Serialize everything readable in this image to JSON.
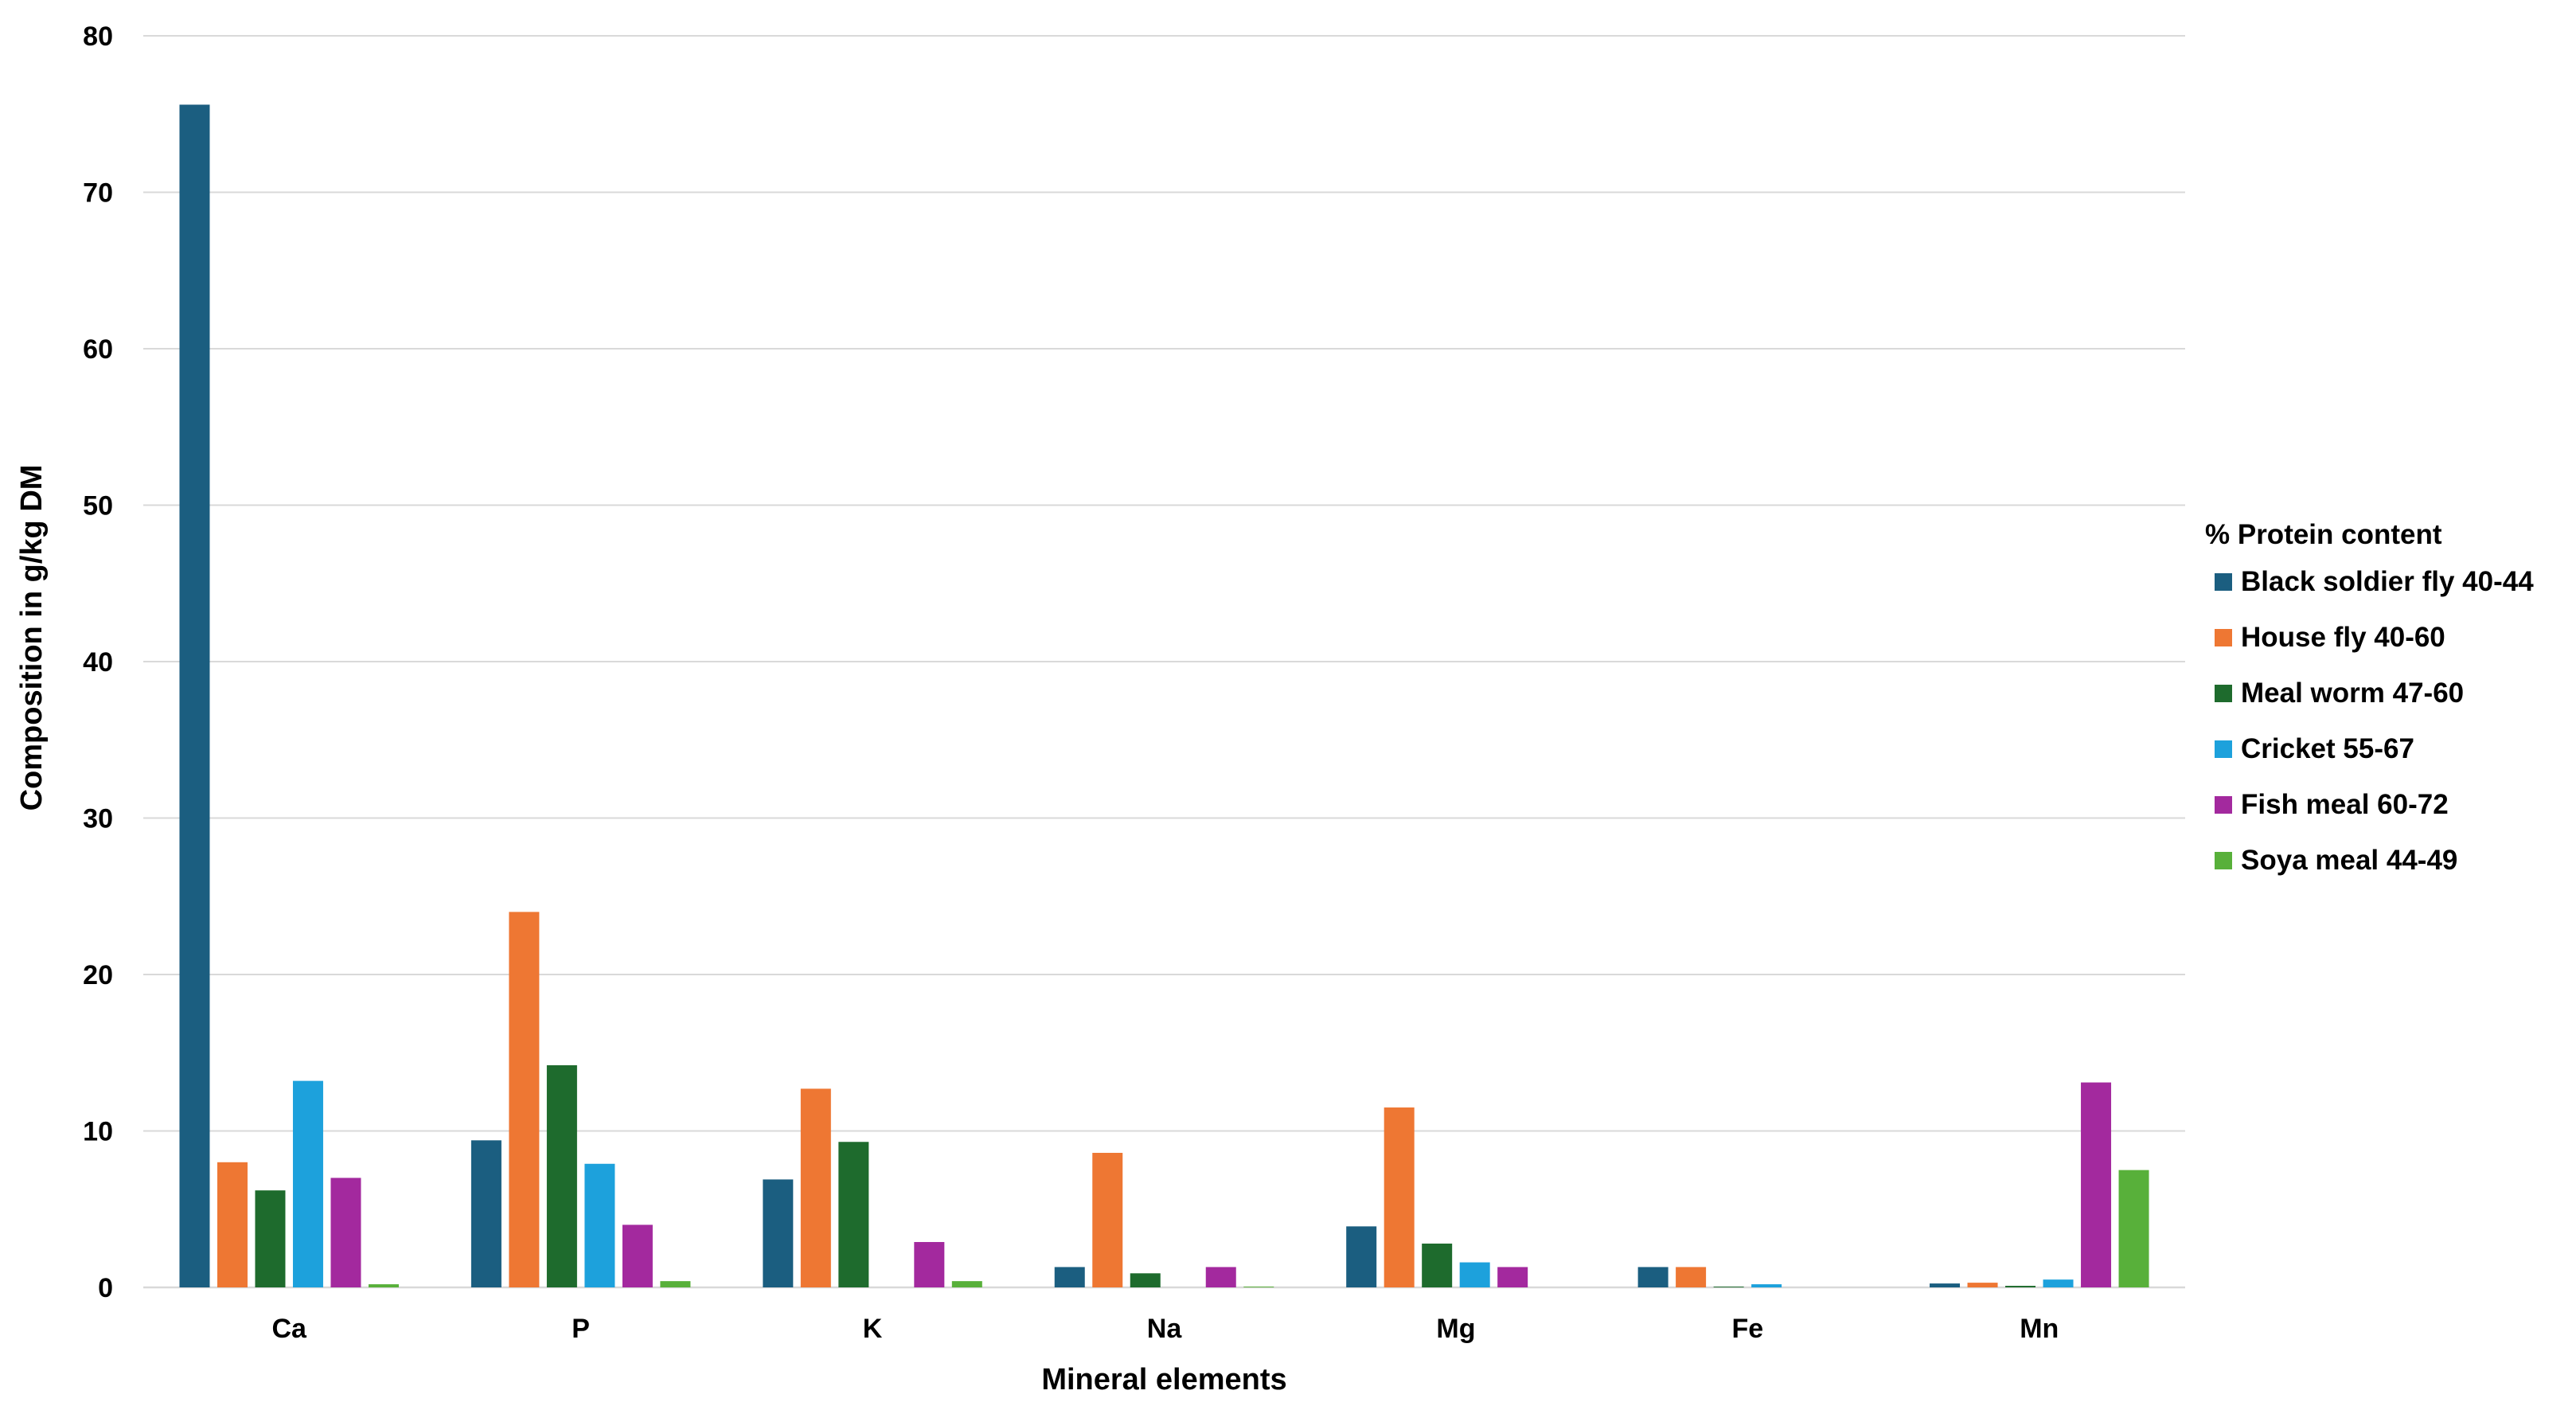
{
  "chart_data": {
    "type": "bar",
    "title": "",
    "xlabel": "Mineral elements",
    "ylabel": "Composition in g/kg DM",
    "categories": [
      "Ca",
      "P",
      "K",
      "Na",
      "Mg",
      "Fe",
      "Mn"
    ],
    "ylim": [
      0,
      80
    ],
    "yticks": [
      0,
      10,
      20,
      30,
      40,
      50,
      60,
      70,
      80
    ],
    "grid": true,
    "legend": {
      "title": "% Protein content",
      "position": "right"
    },
    "series": [
      {
        "name": "Black soldier fly 40-44",
        "color": "#1b5e80",
        "values": [
          75.6,
          9.4,
          6.9,
          1.3,
          3.9,
          1.3,
          0.25
        ]
      },
      {
        "name": "House fly 40-60",
        "color": "#ee7733",
        "values": [
          8.0,
          24.0,
          12.7,
          8.6,
          11.5,
          1.3,
          0.3
        ]
      },
      {
        "name": "Meal worm 47-60",
        "color": "#1e6b2d",
        "values": [
          6.2,
          14.2,
          9.3,
          0.9,
          2.8,
          0.05,
          0.1
        ]
      },
      {
        "name": "Cricket 55-67",
        "color": "#1da1dc",
        "values": [
          13.2,
          7.9,
          0,
          0,
          1.6,
          0.2,
          0.5
        ]
      },
      {
        "name": "Fish meal 60-72",
        "color": "#a3299e",
        "values": [
          7.0,
          4.0,
          2.9,
          1.3,
          1.3,
          0,
          13.1
        ]
      },
      {
        "name": "Soya meal 44-49",
        "color": "#58b03a",
        "values": [
          0.2,
          0.4,
          0.4,
          0.05,
          0,
          0,
          7.5
        ]
      }
    ]
  }
}
